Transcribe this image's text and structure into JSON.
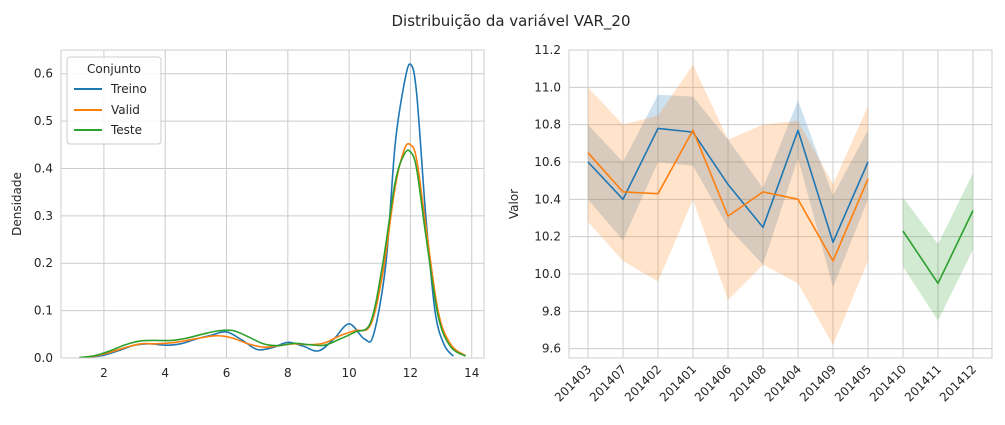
{
  "figure": {
    "title": "Distribuição da variável VAR_20"
  },
  "colors": {
    "treino": "#1f77b4",
    "valid": "#ff7f0e",
    "teste": "#2ca02c",
    "grid": "#cccccc",
    "axes_bg": "#ffffff"
  },
  "chart_data": [
    {
      "type": "line",
      "subtype": "kde",
      "xlabel": "",
      "ylabel": "Densidade",
      "xlim": [
        0.6,
        14.4
      ],
      "ylim": [
        0,
        0.65
      ],
      "xticks": [
        2,
        4,
        6,
        8,
        10,
        12,
        14
      ],
      "yticks": [
        0.0,
        0.1,
        0.2,
        0.3,
        0.4,
        0.5,
        0.6
      ],
      "xtick_labels": [
        "2",
        "4",
        "6",
        "8",
        "10",
        "12",
        "14"
      ],
      "ytick_labels": [
        "0.0",
        "0.1",
        "0.2",
        "0.3",
        "0.4",
        "0.5",
        "0.6"
      ],
      "grid": true,
      "legend": {
        "title": "Conjunto",
        "placement": "top-left",
        "entries": [
          "Treino",
          "Valid",
          "Teste"
        ]
      },
      "series": [
        {
          "name": "Treino",
          "x": [
            1.5,
            2.0,
            2.5,
            3.0,
            3.5,
            4.0,
            4.5,
            5.0,
            5.5,
            6.0,
            6.5,
            7.0,
            7.5,
            8.0,
            8.5,
            9.0,
            9.5,
            10.0,
            10.5,
            10.8,
            11.2,
            11.5,
            11.8,
            12.0,
            12.2,
            12.5,
            12.8,
            13.1,
            13.4
          ],
          "y": [
            0.002,
            0.006,
            0.016,
            0.027,
            0.03,
            0.027,
            0.03,
            0.04,
            0.048,
            0.055,
            0.038,
            0.018,
            0.022,
            0.033,
            0.025,
            0.015,
            0.04,
            0.072,
            0.04,
            0.05,
            0.2,
            0.45,
            0.58,
            0.62,
            0.56,
            0.3,
            0.1,
            0.028,
            0.004
          ]
        },
        {
          "name": "Valid",
          "x": [
            1.2,
            1.7,
            2.2,
            2.7,
            3.2,
            3.7,
            4.2,
            4.7,
            5.2,
            5.7,
            6.2,
            6.7,
            7.2,
            7.7,
            8.2,
            8.7,
            9.2,
            9.7,
            10.2,
            10.7,
            11.1,
            11.5,
            11.8,
            12.0,
            12.2,
            12.5,
            12.9,
            13.3,
            13.8
          ],
          "y": [
            0.001,
            0.004,
            0.012,
            0.022,
            0.03,
            0.03,
            0.032,
            0.037,
            0.043,
            0.047,
            0.042,
            0.03,
            0.023,
            0.026,
            0.03,
            0.028,
            0.032,
            0.047,
            0.058,
            0.07,
            0.18,
            0.36,
            0.44,
            0.45,
            0.42,
            0.28,
            0.1,
            0.03,
            0.005
          ]
        },
        {
          "name": "Teste",
          "x": [
            1.2,
            1.7,
            2.2,
            2.7,
            3.2,
            3.7,
            4.2,
            4.7,
            5.2,
            5.7,
            6.2,
            6.7,
            7.2,
            7.7,
            8.2,
            8.7,
            9.2,
            9.7,
            10.2,
            10.7,
            11.1,
            11.5,
            11.8,
            12.0,
            12.2,
            12.5,
            12.9,
            13.3,
            13.8
          ],
          "y": [
            0.001,
            0.005,
            0.015,
            0.028,
            0.036,
            0.037,
            0.037,
            0.042,
            0.05,
            0.057,
            0.058,
            0.045,
            0.03,
            0.026,
            0.031,
            0.028,
            0.027,
            0.04,
            0.055,
            0.075,
            0.2,
            0.37,
            0.43,
            0.435,
            0.4,
            0.26,
            0.09,
            0.025,
            0.004
          ]
        }
      ]
    },
    {
      "type": "line",
      "subtype": "line-with-ci-band",
      "xlabel": "",
      "ylabel": "Valor",
      "ylim": [
        9.55,
        11.2
      ],
      "yticks": [
        9.6,
        9.8,
        10.0,
        10.2,
        10.4,
        10.6,
        10.8,
        11.0,
        11.2
      ],
      "ytick_labels": [
        "9.6",
        "9.8",
        "10.0",
        "10.2",
        "10.4",
        "10.6",
        "10.8",
        "11.0",
        "11.2"
      ],
      "categories": [
        "201403",
        "201407",
        "201402",
        "201401",
        "201406",
        "201408",
        "201404",
        "201409",
        "201405",
        "201410",
        "201411",
        "201412"
      ],
      "grid": true,
      "series": [
        {
          "name": "Treino",
          "values": [
            10.6,
            10.4,
            10.78,
            10.76,
            10.48,
            10.25,
            10.77,
            10.17,
            10.6,
            null,
            null,
            null
          ],
          "lower": [
            10.4,
            10.18,
            10.6,
            10.58,
            10.25,
            10.05,
            10.62,
            9.93,
            10.4,
            null,
            null,
            null
          ],
          "upper": [
            10.8,
            10.6,
            10.96,
            10.95,
            10.72,
            10.46,
            10.93,
            10.42,
            10.77,
            null,
            null,
            null
          ]
        },
        {
          "name": "Valid",
          "values": [
            10.65,
            10.44,
            10.43,
            10.77,
            10.31,
            10.44,
            10.4,
            10.07,
            10.51,
            null,
            null,
            null
          ],
          "lower": [
            10.28,
            10.07,
            9.96,
            10.4,
            9.86,
            10.05,
            9.95,
            9.62,
            10.07,
            null,
            null,
            null
          ],
          "upper": [
            11.0,
            10.8,
            10.85,
            11.12,
            10.72,
            10.8,
            10.82,
            10.48,
            10.9,
            null,
            null,
            null
          ]
        },
        {
          "name": "Teste",
          "values": [
            null,
            null,
            null,
            null,
            null,
            null,
            null,
            null,
            null,
            10.23,
            9.95,
            10.34
          ],
          "lower": [
            null,
            null,
            null,
            null,
            null,
            null,
            null,
            null,
            null,
            10.04,
            9.75,
            10.13
          ],
          "upper": [
            null,
            null,
            null,
            null,
            null,
            null,
            null,
            null,
            null,
            10.41,
            10.16,
            10.54
          ]
        }
      ]
    }
  ]
}
